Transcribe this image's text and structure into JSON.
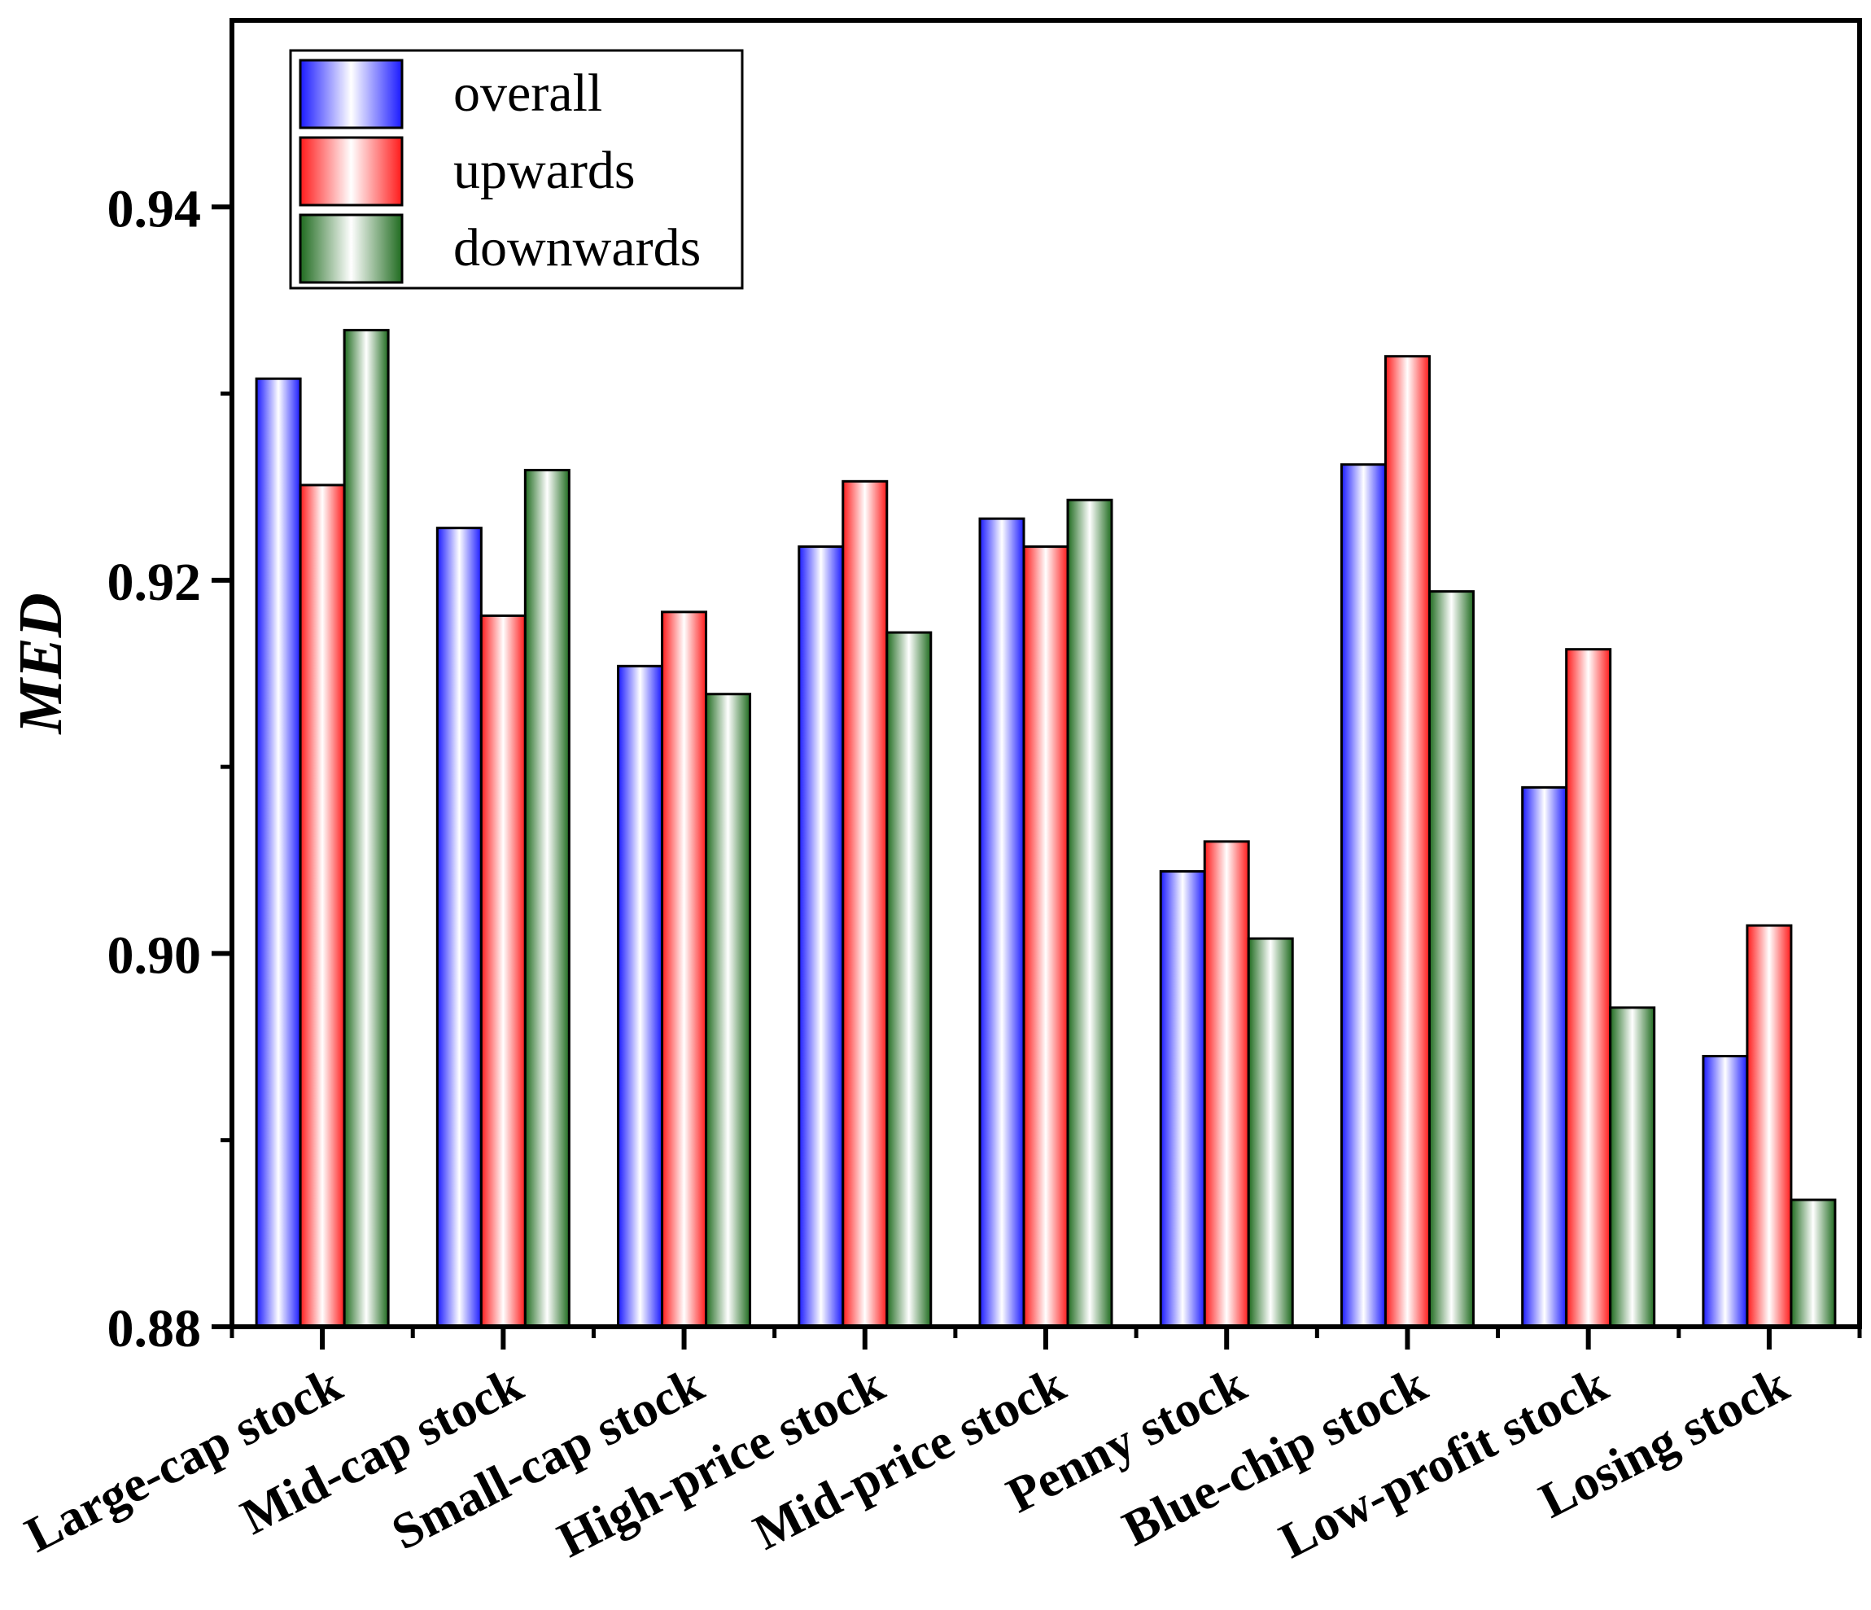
{
  "chart_data": {
    "type": "bar",
    "title": "",
    "xlabel": "",
    "ylabel": "MED",
    "ylim": [
      0.88,
      0.95
    ],
    "yticks": [
      0.88,
      0.9,
      0.92,
      0.94
    ],
    "ytick_labels": [
      "0.88",
      "0.90",
      "0.92",
      "0.94"
    ],
    "grid": false,
    "legend_position": "top-left",
    "categories": [
      "Large-cap stock",
      "Mid-cap stock",
      "Small-cap stock",
      "High-price stock",
      "Mid-price stock",
      "Penny stock",
      "Blue-chip stock",
      "Low-profit stock",
      "Losing stock"
    ],
    "series": [
      {
        "name": "overall",
        "color": "#1a1aff",
        "values": [
          0.9308,
          0.9228,
          0.9154,
          0.9218,
          0.9233,
          0.9044,
          0.9262,
          0.9089,
          0.8945
        ]
      },
      {
        "name": "upwards",
        "color": "#ff1a1a",
        "values": [
          0.9251,
          0.9181,
          0.9183,
          0.9253,
          0.9218,
          0.906,
          0.932,
          0.9163,
          0.9015
        ]
      },
      {
        "name": "downwards",
        "color": "#1f6b1f",
        "values": [
          0.9334,
          0.9259,
          0.9139,
          0.9172,
          0.9243,
          0.9008,
          0.9194,
          0.8971,
          0.8868
        ]
      }
    ]
  }
}
